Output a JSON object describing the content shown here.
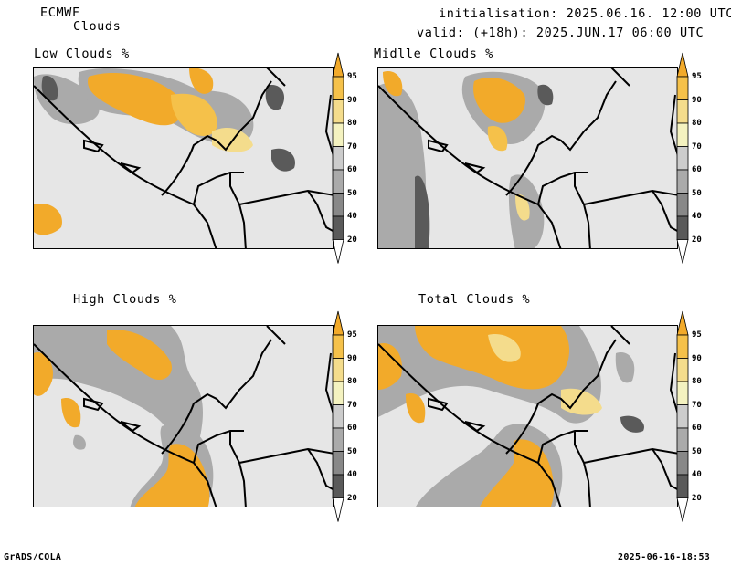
{
  "header": {
    "model": "ECMWF",
    "product": "Clouds",
    "init": "initialisation: 2025.06.16. 12:00 UTC",
    "valid": "valid: (+18h): 2025.JUN.17 06:00 UTC"
  },
  "panels": {
    "low": "Low Clouds %",
    "mid": "Midlle Clouds %",
    "high": "High Clouds %",
    "total": "Total Clouds %"
  },
  "colorbar": {
    "levels": [
      "95",
      "90",
      "80",
      "70",
      "60",
      "50",
      "40",
      "20"
    ],
    "colors": [
      "#f2aa2a",
      "#f5c14a",
      "#f4dc8c",
      "#f4f2c0",
      "#cccccc",
      "#aaaaaa",
      "#888888",
      "#5a5a5a",
      "#ffffff"
    ]
  },
  "footer": {
    "left": "GrADS/COLA",
    "right": "2025-06-16-18:53"
  }
}
